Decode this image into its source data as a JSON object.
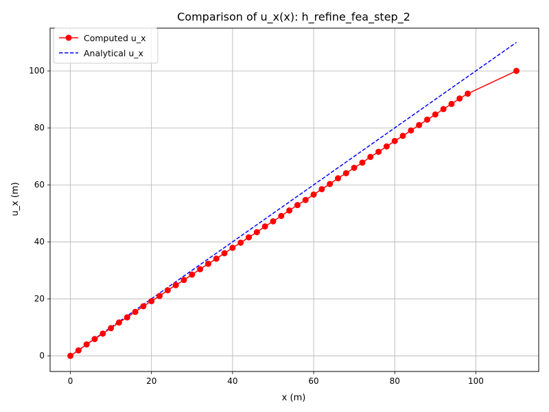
{
  "chart_data": {
    "type": "line",
    "title": "Comparison of u_x(x): h_refine_fea_step_2",
    "xlabel": "x (m)",
    "ylabel": "u_x (m)",
    "xlim": [
      -5,
      115.5
    ],
    "ylim": [
      -5.5,
      115
    ],
    "xticks": [
      0,
      20,
      40,
      60,
      80,
      100
    ],
    "yticks": [
      0,
      20,
      40,
      60,
      80,
      100
    ],
    "grid": true,
    "legend_position": "top-left",
    "series": [
      {
        "name": "Computed u_x",
        "color": "#ff0000",
        "style": "solid-with-circle-markers",
        "x": [
          0,
          2,
          4,
          6,
          8,
          10,
          12,
          14,
          16,
          18,
          20,
          22,
          24,
          26,
          28,
          30,
          32,
          34,
          36,
          38,
          40,
          42,
          44,
          46,
          48,
          50,
          52,
          54,
          56,
          58,
          60,
          62,
          64,
          66,
          68,
          70,
          72,
          74,
          76,
          78,
          80,
          82,
          84,
          86,
          88,
          90,
          92,
          94,
          96,
          98,
          110
        ],
        "y": [
          0,
          1.9,
          4.0,
          5.9,
          7.8,
          9.7,
          11.7,
          13.5,
          15.4,
          17.4,
          19.2,
          21.0,
          23.0,
          24.8,
          26.6,
          28.5,
          30.4,
          32.3,
          34.1,
          36.0,
          37.9,
          39.7,
          41.6,
          43.4,
          45.4,
          47.2,
          49.1,
          51.0,
          52.9,
          54.7,
          56.6,
          58.5,
          60.3,
          62.3,
          64.1,
          66.0,
          67.8,
          69.8,
          71.6,
          73.5,
          75.4,
          77.2,
          79.1,
          81.0,
          82.9,
          84.7,
          86.6,
          88.4,
          90.3,
          92.0,
          100
        ]
      },
      {
        "name": "Analytical u_x",
        "color": "#0000ff",
        "style": "dashed",
        "x": [
          0,
          110
        ],
        "y": [
          0,
          110
        ]
      }
    ]
  }
}
